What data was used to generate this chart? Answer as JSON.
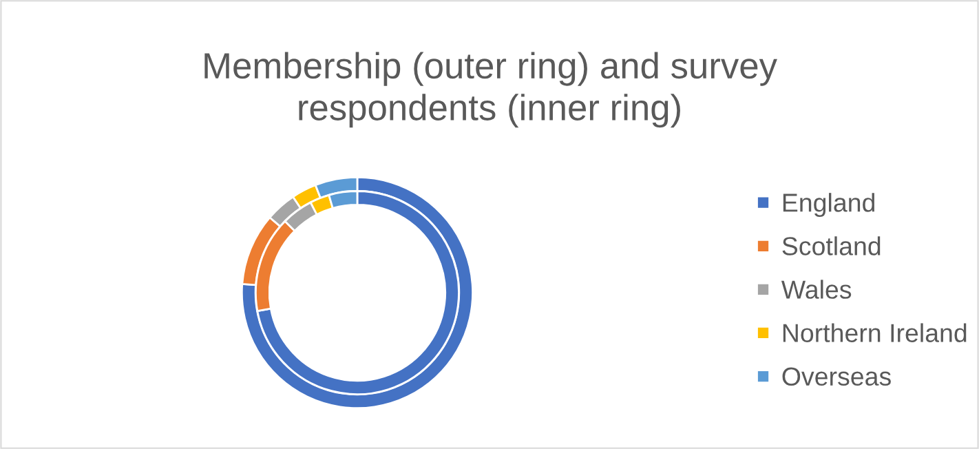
{
  "chart_data": {
    "type": "donut",
    "title": "Membership (outer ring) and survey respondents (inner ring)",
    "categories": [
      "England",
      "Scotland",
      "Wales",
      "Northern Ireland",
      "Overseas"
    ],
    "colors": [
      "#4472c4",
      "#ed7d31",
      "#a5a5a5",
      "#ffc000",
      "#5b9bd5"
    ],
    "series": [
      {
        "values": [
          76.2,
          10.1,
          4.3,
          3.5,
          5.9
        ]
      },
      {
        "values": [
          72.1,
          15.3,
          5.0,
          3.1,
          4.5
        ]
      }
    ],
    "legend": "right"
  }
}
